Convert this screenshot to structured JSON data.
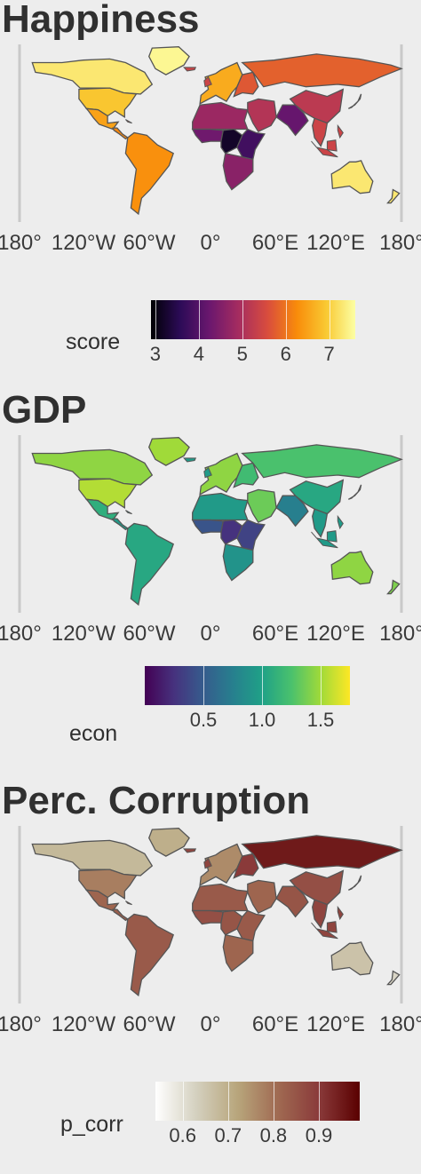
{
  "panels": [
    {
      "key": "happiness",
      "title": "Happiness",
      "x_ticks": [
        "180°",
        "120°W",
        "60°W",
        "0°",
        "60°E",
        "120°E",
        "180°"
      ],
      "legend": {
        "title": "score",
        "labels": [
          "3",
          "4",
          "5",
          "6",
          "7"
        ],
        "range": [
          2.9,
          7.6
        ],
        "colors": [
          "#000004",
          "#2c0b57",
          "#6a176e",
          "#a52c60",
          "#d94d3d",
          "#f98c0a",
          "#f9c932",
          "#fcffa4"
        ]
      },
      "region_values": {
        "north_america": 7.3,
        "usa": 6.9,
        "mexico": 6.5,
        "central_america": 6.2,
        "south_america": 6.3,
        "greenland": 7.5,
        "europe_west": 6.6,
        "europe_east": 5.7,
        "russia_asia": 5.8,
        "middle_east": 5.1,
        "north_africa": 4.8,
        "west_africa": 4.3,
        "central_africa": 3.2,
        "east_africa": 3.8,
        "southern_africa": 4.6,
        "south_asia": 4.2,
        "china": 5.2,
        "se_asia": 5.4,
        "japan": 6.0,
        "australia": 7.3,
        "new_zealand": 7.3
      }
    },
    {
      "key": "gdp",
      "title": "GDP",
      "x_ticks": [
        "180°",
        "120°W",
        "60°W",
        "0°",
        "60°E",
        "120°E",
        "180°"
      ],
      "legend": {
        "title": "econ",
        "labels": [
          "0.5",
          "1.0",
          "1.5"
        ],
        "range": [
          0.0,
          1.75
        ],
        "colors": [
          "#440154",
          "#46327e",
          "#365c8d",
          "#277f8e",
          "#1fa187",
          "#4ac16d",
          "#a0da39",
          "#fde725"
        ]
      },
      "region_values": {
        "north_america": 1.45,
        "usa": 1.55,
        "mexico": 1.1,
        "central_america": 0.95,
        "south_america": 1.05,
        "greenland": 1.5,
        "europe_west": 1.45,
        "europe_east": 1.2,
        "russia_asia": 1.25,
        "middle_east": 1.35,
        "north_africa": 0.95,
        "west_africa": 0.45,
        "central_africa": 0.25,
        "east_africa": 0.35,
        "southern_africa": 0.9,
        "south_asia": 0.75,
        "china": 1.05,
        "se_asia": 0.95,
        "japan": 1.4,
        "australia": 1.45,
        "new_zealand": 1.4
      }
    },
    {
      "key": "corruption",
      "title": "Perc. Corruption",
      "x_ticks": [
        "180°",
        "120°W",
        "60°W",
        "0°",
        "60°E",
        "120°E",
        "180°"
      ],
      "legend": {
        "title": "p_corr",
        "labels": [
          "0.6",
          "0.7",
          "0.8",
          "0.9"
        ],
        "range": [
          0.54,
          0.99
        ],
        "colors": [
          "#ffffff",
          "#d4d0bf",
          "#b8a67c",
          "#a06a52",
          "#8a3a3a",
          "#5a0000"
        ]
      },
      "region_values": {
        "north_america": 0.68,
        "usa": 0.78,
        "mexico": 0.82,
        "central_america": 0.83,
        "south_america": 0.84,
        "greenland": 0.7,
        "europe_west": 0.76,
        "europe_east": 0.9,
        "russia_asia": 0.95,
        "middle_east": 0.82,
        "north_africa": 0.84,
        "west_africa": 0.86,
        "central_africa": 0.85,
        "east_africa": 0.84,
        "southern_africa": 0.82,
        "south_asia": 0.85,
        "china": 0.86,
        "se_asia": 0.88,
        "japan": 0.72,
        "australia": 0.66,
        "new_zealand": 0.62
      }
    }
  ]
}
